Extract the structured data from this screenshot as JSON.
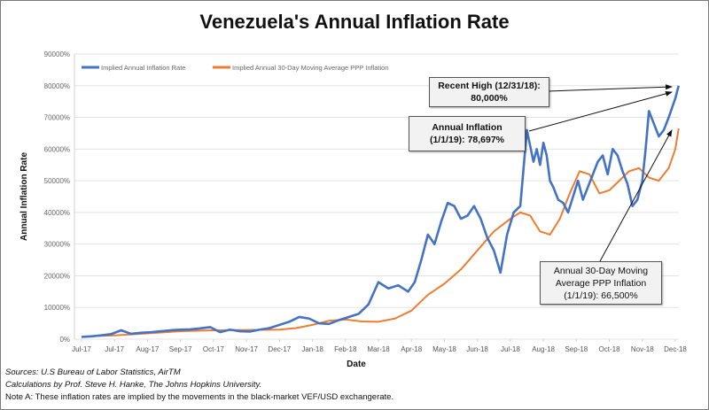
{
  "chart_data": {
    "type": "line",
    "title": "Venezuela's Annual Inflation Rate",
    "xlabel": "Date",
    "ylabel": "Annual Inflation Rate",
    "ylim": [
      0,
      90000
    ],
    "yticks": [
      0,
      10000,
      20000,
      30000,
      40000,
      50000,
      60000,
      70000,
      80000,
      90000
    ],
    "ytick_labels": [
      "0%",
      "10000%",
      "20000%",
      "30000%",
      "40000%",
      "50000%",
      "60000%",
      "70000%",
      "80000%",
      "90000%"
    ],
    "categories": [
      "Jul-17",
      "Jul-17",
      "Aug-17",
      "Sep-17",
      "Oct-17",
      "Nov-17",
      "Dec-17",
      "Jan-18",
      "Feb-18",
      "Mar-18",
      "Apr-18",
      "May-18",
      "Jun-18",
      "Jul-18",
      "Aug-18",
      "Sep-18",
      "Oct-18",
      "Nov-18",
      "Dec-18"
    ],
    "grid": "horizontal",
    "legend": "top-left",
    "series": [
      {
        "name": "Implied Annual Inflation Rate",
        "color": "#4472C4",
        "x": [
          0,
          0.3,
          0.6,
          0.9,
          1.2,
          1.5,
          1.8,
          2.1,
          2.4,
          2.7,
          3.0,
          3.3,
          3.6,
          3.9,
          4.2,
          4.5,
          4.8,
          5.1,
          5.4,
          5.7,
          6.0,
          6.3,
          6.6,
          6.9,
          7.2,
          7.5,
          7.8,
          8.1,
          8.4,
          8.7,
          9.0,
          9.3,
          9.6,
          9.9,
          10.1,
          10.3,
          10.5,
          10.7,
          10.9,
          11.1,
          11.3,
          11.5,
          11.7,
          11.9,
          12.1,
          12.3,
          12.5,
          12.7,
          12.9,
          13.1,
          13.3,
          13.5,
          13.7,
          13.8,
          13.9,
          14.0,
          14.1,
          14.2,
          14.3,
          14.45,
          14.6,
          14.75,
          14.9,
          15.05,
          15.2,
          15.35,
          15.5,
          15.65,
          15.8,
          15.95,
          16.1,
          16.25,
          16.4,
          16.55,
          16.7,
          16.85,
          17.0,
          17.1,
          17.2,
          17.35,
          17.5,
          17.65,
          17.8,
          17.9,
          18.0,
          18.1
        ],
        "values": [
          700,
          900,
          1200,
          1600,
          2800,
          1700,
          2000,
          2200,
          2500,
          2800,
          3000,
          3100,
          3400,
          3800,
          2200,
          3000,
          2500,
          2400,
          3000,
          3500,
          4500,
          5500,
          7000,
          6500,
          5000,
          4800,
          6000,
          7000,
          8000,
          11000,
          18000,
          16000,
          17000,
          15000,
          18000,
          25000,
          33000,
          30000,
          37000,
          43000,
          42000,
          38000,
          39000,
          42000,
          38000,
          32000,
          28000,
          21000,
          33000,
          40000,
          42000,
          66000,
          56000,
          60000,
          55000,
          62000,
          58000,
          50000,
          48000,
          44000,
          43000,
          40000,
          45000,
          50000,
          44000,
          48000,
          52000,
          56000,
          58000,
          52000,
          60000,
          58000,
          53000,
          49000,
          42000,
          44000,
          50000,
          60000,
          72000,
          68000,
          64000,
          66000,
          70000,
          73000,
          76000,
          80000
        ],
        "format": "%"
      },
      {
        "name": "Implied Annual 30-Day Moving Average PPP Inflation",
        "color": "#ED7D31",
        "x": [
          0,
          1,
          2,
          3,
          4,
          5,
          6,
          6.5,
          7,
          7.5,
          8,
          8.5,
          9,
          9.5,
          10,
          10.5,
          11,
          11.5,
          12,
          12.5,
          13,
          13.3,
          13.6,
          13.9,
          14.2,
          14.5,
          14.8,
          15.1,
          15.4,
          15.7,
          16.0,
          16.3,
          16.6,
          16.9,
          17.2,
          17.5,
          17.8,
          18.0,
          18.1
        ],
        "values": [
          800,
          1200,
          1800,
          2500,
          2800,
          2900,
          3000,
          3500,
          4500,
          5800,
          6200,
          5600,
          5500,
          6500,
          9000,
          14000,
          17500,
          22000,
          28000,
          34000,
          38000,
          40000,
          39000,
          34000,
          33000,
          38000,
          46000,
          53000,
          52000,
          46000,
          47000,
          50000,
          53000,
          54000,
          51000,
          50000,
          54000,
          60000,
          66500
        ],
        "format": "%"
      }
    ],
    "annotations": [
      {
        "label_line1": "Recent High (12/31/18):",
        "label_line2": "80,000%",
        "bold": true
      },
      {
        "label_line1": "Annual Inflation",
        "label_line2": "(1/1/19): 78,697%",
        "bold": true
      },
      {
        "label_line1": "Annual 30-Day Moving",
        "label_line2": "Average PPP Inflation",
        "label_line3": "(1/1/19): 66,500%",
        "bold": false
      }
    ]
  },
  "footer": {
    "sources": "Sources: U.S Bureau of Labor Statistics, AirTM",
    "calculations": "Calculations by Prof. Steve H. Hanke, The Johns Hopkins University.",
    "note": "Note A: These inflation rates are implied by the movements in the black-market VEF/USD exchangerate."
  }
}
